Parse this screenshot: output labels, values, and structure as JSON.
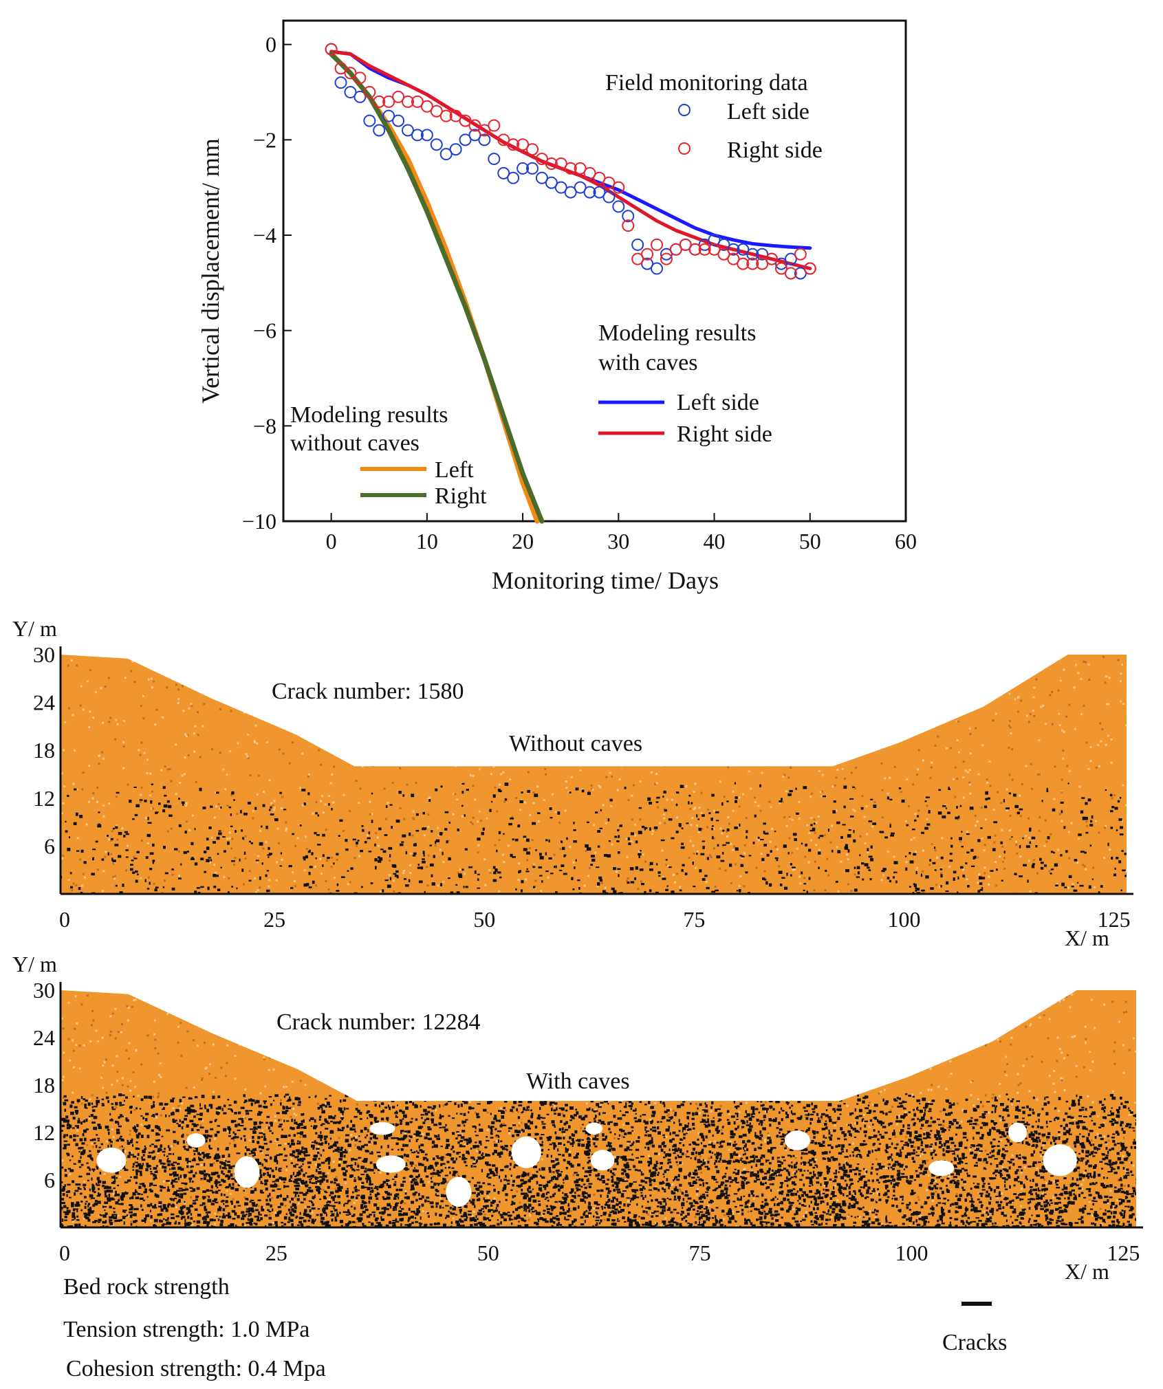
{
  "colors": {
    "left_field": "#1f3fd6",
    "right_field": "#e8232b",
    "with_caves_left": "#1a1aff",
    "with_caves_right": "#e0162b",
    "without_left": "#f28a16",
    "without_right": "#4d6b2b",
    "rock": "#f0962e",
    "rock_light": "#f7cf93",
    "crack": "#111111",
    "cave": "#ffffff"
  },
  "chart_data": [
    {
      "type": "line",
      "title": "",
      "xlabel": "Monitoring time/ Days",
      "ylabel": "Vertical displacement/ mm",
      "xlim": [
        -5,
        60
      ],
      "ylim": [
        -10,
        0.5
      ],
      "xticks": [
        "0",
        "10",
        "20",
        "30",
        "40",
        "50",
        "60"
      ],
      "yticks": [
        "0",
        "−2",
        "−4",
        "−6",
        "−8",
        "−10"
      ],
      "legend_groups": {
        "field_title": "Field monitoring data",
        "field_left": "Left side",
        "field_right": "Right side",
        "caves_title_1": "Modeling results",
        "caves_title_2": "with caves",
        "caves_left": "Left side",
        "caves_right": "Right side",
        "nocaves_title_1": "Modeling results",
        "nocaves_title_2": "without caves",
        "nocaves_left": "Left",
        "nocaves_right": "Right"
      },
      "series": [
        {
          "name": "Field monitoring data - Left side",
          "style": "scatter",
          "x": [
            0,
            1,
            2,
            3,
            4,
            5,
            6,
            7,
            8,
            9,
            10,
            11,
            12,
            13,
            14,
            15,
            16,
            17,
            18,
            19,
            20,
            21,
            22,
            23,
            24,
            25,
            26,
            27,
            28,
            29,
            30,
            31,
            32,
            33,
            34,
            35,
            36,
            37,
            38,
            39,
            40,
            41,
            42,
            43,
            44,
            45,
            46,
            47,
            48,
            49,
            50
          ],
          "y": [
            -0.1,
            -0.8,
            -1.0,
            -1.1,
            -1.6,
            -1.8,
            -1.5,
            -1.6,
            -1.8,
            -1.9,
            -1.9,
            -2.1,
            -2.3,
            -2.2,
            -2.0,
            -1.9,
            -2.0,
            -2.4,
            -2.7,
            -2.8,
            -2.6,
            -2.6,
            -2.8,
            -2.9,
            -3.0,
            -3.1,
            -3.0,
            -3.1,
            -3.1,
            -3.2,
            -3.4,
            -3.6,
            -4.2,
            -4.6,
            -4.7,
            -4.4,
            -4.3,
            -4.2,
            -4.3,
            -4.2,
            -4.1,
            -4.2,
            -4.3,
            -4.3,
            -4.4,
            -4.4,
            -4.5,
            -4.6,
            -4.5,
            -4.8,
            -4.7
          ]
        },
        {
          "name": "Field monitoring data - Right side",
          "style": "scatter",
          "x": [
            0,
            1,
            2,
            3,
            4,
            5,
            6,
            7,
            8,
            9,
            10,
            11,
            12,
            13,
            14,
            15,
            16,
            17,
            18,
            19,
            20,
            21,
            22,
            23,
            24,
            25,
            26,
            27,
            28,
            29,
            30,
            31,
            32,
            33,
            34,
            35,
            36,
            37,
            38,
            39,
            40,
            41,
            42,
            43,
            44,
            45,
            46,
            47,
            48,
            49,
            50
          ],
          "y": [
            -0.1,
            -0.5,
            -0.6,
            -0.7,
            -1.0,
            -1.2,
            -1.2,
            -1.1,
            -1.2,
            -1.2,
            -1.3,
            -1.4,
            -1.5,
            -1.5,
            -1.6,
            -1.7,
            -1.8,
            -1.7,
            -2.0,
            -2.1,
            -2.1,
            -2.2,
            -2.4,
            -2.5,
            -2.5,
            -2.6,
            -2.6,
            -2.7,
            -2.8,
            -2.9,
            -3.0,
            -3.8,
            -4.5,
            -4.4,
            -4.2,
            -4.5,
            -4.3,
            -4.2,
            -4.3,
            -4.3,
            -4.3,
            -4.4,
            -4.5,
            -4.6,
            -4.6,
            -4.6,
            -4.5,
            -4.7,
            -4.8,
            -4.4,
            -4.7
          ]
        },
        {
          "name": "Modeling results with caves - Left side",
          "style": "line",
          "x": [
            0,
            2,
            4,
            6,
            8,
            10,
            12,
            14,
            16,
            18,
            20,
            22,
            24,
            26,
            28,
            30,
            32,
            34,
            36,
            38,
            40,
            42,
            44,
            46,
            48,
            50
          ],
          "y": [
            -0.15,
            -0.2,
            -0.5,
            -0.7,
            -0.85,
            -1.05,
            -1.3,
            -1.55,
            -1.8,
            -2.05,
            -2.25,
            -2.45,
            -2.6,
            -2.75,
            -2.9,
            -3.05,
            -3.25,
            -3.45,
            -3.65,
            -3.85,
            -4.0,
            -4.1,
            -4.18,
            -4.22,
            -4.25,
            -4.27
          ]
        },
        {
          "name": "Modeling results with caves - Right side",
          "style": "line",
          "x": [
            0,
            2,
            4,
            6,
            8,
            10,
            12,
            14,
            16,
            18,
            20,
            22,
            24,
            26,
            28,
            30,
            32,
            34,
            36,
            38,
            40,
            42,
            44,
            46,
            48,
            50
          ],
          "y": [
            -0.15,
            -0.2,
            -0.45,
            -0.65,
            -0.85,
            -1.05,
            -1.3,
            -1.55,
            -1.8,
            -2.05,
            -2.25,
            -2.45,
            -2.6,
            -2.75,
            -2.95,
            -3.2,
            -3.45,
            -3.7,
            -3.9,
            -4.05,
            -4.2,
            -4.3,
            -4.4,
            -4.5,
            -4.6,
            -4.7
          ]
        },
        {
          "name": "Modeling results without caves - Left",
          "style": "line",
          "x": [
            0,
            2,
            4,
            6,
            8,
            10,
            12,
            14,
            16,
            18,
            20,
            21.5
          ],
          "y": [
            -0.2,
            -0.6,
            -1.1,
            -1.7,
            -2.4,
            -3.3,
            -4.3,
            -5.4,
            -6.6,
            -7.9,
            -9.2,
            -10.0
          ]
        },
        {
          "name": "Modeling results without caves - Right",
          "style": "line",
          "x": [
            0,
            2,
            4,
            6,
            8,
            10,
            12,
            14,
            16,
            18,
            20,
            22
          ],
          "y": [
            -0.2,
            -0.6,
            -1.1,
            -1.8,
            -2.6,
            -3.5,
            -4.5,
            -5.5,
            -6.6,
            -7.8,
            -9.0,
            -10.0
          ]
        }
      ]
    },
    {
      "type": "heatmap",
      "title": "Without caves",
      "annotation": "Crack number: 1580",
      "xlabel": "X/ m",
      "ylabel": "Y/ m",
      "xlim": [
        0,
        127
      ],
      "ylim": [
        0,
        30
      ],
      "xticks": [
        "0",
        "25",
        "50",
        "75",
        "100",
        "125"
      ],
      "yticks": [
        "30",
        "24",
        "18",
        "12",
        "6"
      ],
      "crack_number": 1580,
      "surface_profile": {
        "x": [
          0,
          8,
          18,
          28,
          35,
          45,
          55,
          65,
          75,
          85,
          92,
          100,
          110,
          120,
          127
        ],
        "y": [
          30,
          29.5,
          24.5,
          20,
          16,
          16,
          16,
          16,
          16,
          16,
          16,
          19,
          23.5,
          30,
          30
        ]
      },
      "caves": []
    },
    {
      "type": "heatmap",
      "title": "With caves",
      "annotation": "Crack number: 12284",
      "xlabel": "X/ m",
      "ylabel": "Y/ m",
      "xlim": [
        0,
        127
      ],
      "ylim": [
        0,
        30
      ],
      "xticks": [
        "0",
        "25",
        "50",
        "75",
        "100",
        "125"
      ],
      "yticks": [
        "30",
        "24",
        "18",
        "12",
        "6"
      ],
      "crack_number": 12284,
      "surface_profile": {
        "x": [
          0,
          8,
          18,
          28,
          35,
          45,
          55,
          65,
          75,
          85,
          92,
          100,
          110,
          120,
          127
        ],
        "y": [
          30,
          29.5,
          24.5,
          20,
          16,
          16,
          16,
          16,
          16,
          16,
          16,
          19,
          23.5,
          30,
          30
        ]
      },
      "caves": [
        {
          "x": 6,
          "y": 8.5,
          "w": 3.5,
          "h": 3.2
        },
        {
          "x": 16,
          "y": 11,
          "w": 2.2,
          "h": 1.8
        },
        {
          "x": 22,
          "y": 7,
          "w": 3,
          "h": 4
        },
        {
          "x": 38,
          "y": 12.5,
          "w": 3,
          "h": 1.6
        },
        {
          "x": 39,
          "y": 8,
          "w": 3.5,
          "h": 2.2
        },
        {
          "x": 47,
          "y": 4.5,
          "w": 3,
          "h": 3.8
        },
        {
          "x": 55,
          "y": 9.5,
          "w": 3.5,
          "h": 4
        },
        {
          "x": 63,
          "y": 12.5,
          "w": 2,
          "h": 1.5
        },
        {
          "x": 64,
          "y": 8.5,
          "w": 2.8,
          "h": 2.6
        },
        {
          "x": 87,
          "y": 11,
          "w": 3,
          "h": 2.5
        },
        {
          "x": 104,
          "y": 7.5,
          "w": 3,
          "h": 2
        },
        {
          "x": 113,
          "y": 12,
          "w": 2.2,
          "h": 2.5
        },
        {
          "x": 118,
          "y": 8.5,
          "w": 4,
          "h": 4
        }
      ]
    }
  ],
  "footnote": {
    "line1": "Bed rock strength",
    "line2": "Tension strength: 1.0 MPa",
    "line3": "Cohesion strength: 0.4 Mpa",
    "cracks_label": "Cracks"
  }
}
